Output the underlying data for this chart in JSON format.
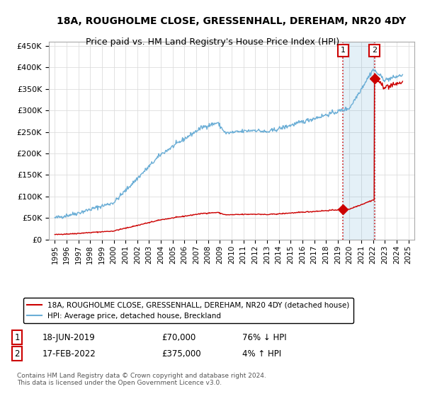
{
  "title": "18A, ROUGHOLME CLOSE, GRESSENHALL, DEREHAM, NR20 4DY",
  "subtitle": "Price paid vs. HM Land Registry's House Price Index (HPI)",
  "hpi_label": "HPI: Average price, detached house, Breckland",
  "property_label": "18A, ROUGHOLME CLOSE, GRESSENHALL, DEREHAM, NR20 4DY (detached house)",
  "legend_footnote": "Contains HM Land Registry data © Crown copyright and database right 2024.\nThis data is licensed under the Open Government Licence v3.0.",
  "annotation1_date": "18-JUN-2019",
  "annotation1_price": "£70,000",
  "annotation1_hpi": "76% ↓ HPI",
  "annotation1_year": 2019.46,
  "annotation1_value": 70000,
  "annotation2_date": "17-FEB-2022",
  "annotation2_price": "£375,000",
  "annotation2_hpi": "4% ↑ HPI",
  "annotation2_year": 2022.12,
  "annotation2_value": 375000,
  "ylim": [
    0,
    460000
  ],
  "xlim_start": 1994.5,
  "xlim_end": 2025.5,
  "hpi_color": "#6baed6",
  "property_color": "#cc0000",
  "dashed_line_color": "#cc0000",
  "shade_color": "#ddeeff",
  "grid_color": "#dddddd",
  "background_color": "#ffffff",
  "title_fontsize": 10,
  "subtitle_fontsize": 9
}
